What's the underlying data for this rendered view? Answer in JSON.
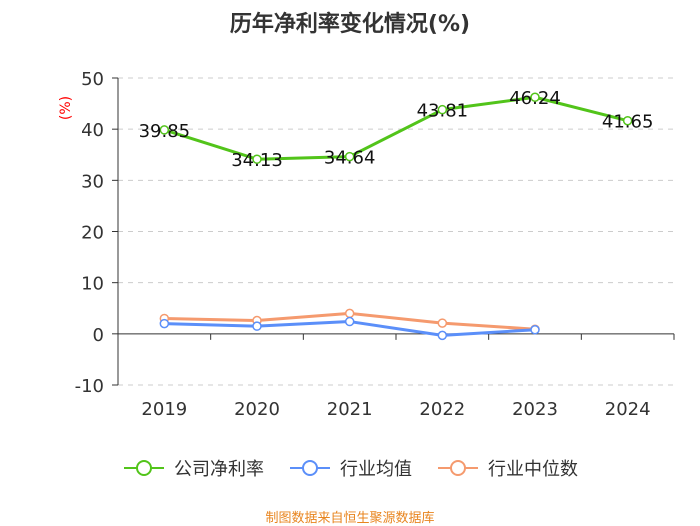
{
  "chart_data": {
    "type": "line",
    "title": "历年净利率变化情况(%)",
    "ylabel": "(%)",
    "xlabel": "",
    "categories": [
      "2019",
      "2020",
      "2021",
      "2022",
      "2023",
      "2024"
    ],
    "ylim": [
      -10,
      50
    ],
    "yticks": [
      -10,
      0,
      10,
      20,
      30,
      40,
      50
    ],
    "grid": true,
    "legend_position": "bottom",
    "series": [
      {
        "name": "公司净利率",
        "color": "#52c41a",
        "show_labels": true,
        "values": [
          39.85,
          34.13,
          34.64,
          43.81,
          46.24,
          41.65
        ],
        "labels": [
          "39.85",
          "34.13",
          "34.64",
          "43.81",
          "46.24",
          "41.65"
        ]
      },
      {
        "name": "行业均值",
        "color": "#5b8ff9",
        "show_labels": false,
        "values": [
          2.0,
          1.5,
          2.4,
          -0.3,
          0.8,
          null
        ]
      },
      {
        "name": "行业中位数",
        "color": "#f59a6e",
        "show_labels": false,
        "values": [
          3.0,
          2.6,
          4.0,
          2.1,
          0.9,
          null
        ]
      }
    ]
  },
  "source_text": "制图数据来自恒生聚源数据库",
  "colors": {
    "title": "#333333",
    "axis": "#333333",
    "grid": "#cccccc",
    "ylabel": "#ff0000",
    "footer": "#e8851f"
  }
}
